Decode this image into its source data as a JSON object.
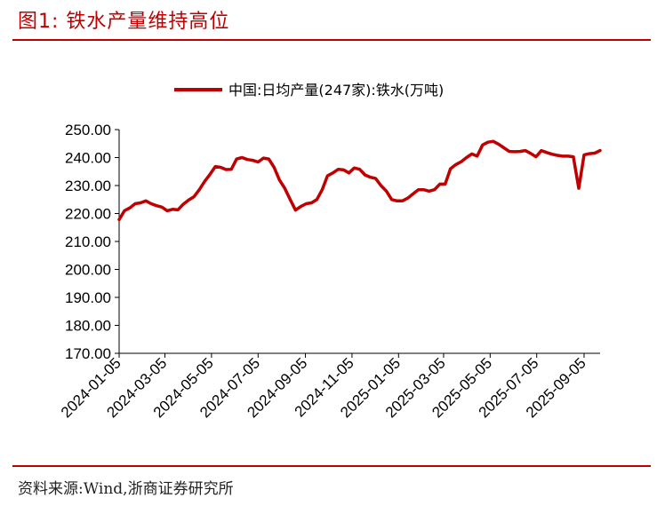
{
  "figure_title": "图1:   铁水产量维持高位",
  "source": "资料来源:Wind,浙商证券研究所",
  "colors": {
    "accent": "#c00000",
    "axis": "#000000",
    "text": "#000000"
  },
  "chart_data": {
    "type": "line",
    "title": "",
    "xlabel": "",
    "ylabel": "",
    "ylim": [
      170,
      250
    ],
    "yticks": [
      "170.00",
      "180.00",
      "190.00",
      "200.00",
      "210.00",
      "220.00",
      "230.00",
      "240.00",
      "250.00"
    ],
    "xticks": [
      "2024-01-05",
      "2024-03-05",
      "2024-05-05",
      "2024-07-05",
      "2024-09-05",
      "2024-11-05",
      "2025-01-05",
      "2025-03-05",
      "2025-05-05",
      "2025-07-05",
      "2025-09-05"
    ],
    "grid": false,
    "legend_position": "top-center",
    "series": [
      {
        "name": "中国:日均产量(247家):铁水(万吨)",
        "color": "#c00000",
        "x": [
          "2024-01-05",
          "2024-01-12",
          "2024-01-19",
          "2024-01-26",
          "2024-02-02",
          "2024-02-09",
          "2024-02-16",
          "2024-02-23",
          "2024-03-01",
          "2024-03-08",
          "2024-03-15",
          "2024-03-22",
          "2024-03-29",
          "2024-04-05",
          "2024-04-12",
          "2024-04-19",
          "2024-04-26",
          "2024-05-03",
          "2024-05-10",
          "2024-05-17",
          "2024-05-24",
          "2024-05-31",
          "2024-06-07",
          "2024-06-14",
          "2024-06-21",
          "2024-06-28",
          "2024-07-05",
          "2024-07-12",
          "2024-07-19",
          "2024-07-26",
          "2024-08-02",
          "2024-08-09",
          "2024-08-16",
          "2024-08-23",
          "2024-08-30",
          "2024-09-06",
          "2024-09-13",
          "2024-09-20",
          "2024-09-27",
          "2024-10-04",
          "2024-10-11",
          "2024-10-18",
          "2024-10-25",
          "2024-11-01",
          "2024-11-08",
          "2024-11-15",
          "2024-11-22",
          "2024-11-29",
          "2024-12-06",
          "2024-12-13",
          "2024-12-20",
          "2024-12-27",
          "2025-01-03",
          "2025-01-10",
          "2025-01-17",
          "2025-01-24",
          "2025-01-31",
          "2025-02-07",
          "2025-02-14",
          "2025-02-21",
          "2025-02-28",
          "2025-03-07",
          "2025-03-14",
          "2025-03-21",
          "2025-03-28",
          "2025-04-04",
          "2025-04-11",
          "2025-04-18",
          "2025-04-25",
          "2025-05-02",
          "2025-05-09",
          "2025-05-16",
          "2025-05-23",
          "2025-05-30",
          "2025-06-06",
          "2025-06-13",
          "2025-06-20",
          "2025-06-27",
          "2025-07-04",
          "2025-07-11",
          "2025-07-18",
          "2025-07-25",
          "2025-08-01",
          "2025-08-08",
          "2025-08-15",
          "2025-08-22",
          "2025-08-29",
          "2025-09-05",
          "2025-09-12",
          "2025-09-19",
          "2025-09-26"
        ],
        "y": [
          217.8,
          221.0,
          222.0,
          223.5,
          223.8,
          224.5,
          223.5,
          222.8,
          222.3,
          221.0,
          221.5,
          221.3,
          223.3,
          224.8,
          226.0,
          228.5,
          231.5,
          234.0,
          236.8,
          236.5,
          235.7,
          235.8,
          239.5,
          240.0,
          239.3,
          239.0,
          238.4,
          239.8,
          239.5,
          236.5,
          232.0,
          229.0,
          225.0,
          221.2,
          222.5,
          223.5,
          223.8,
          225.0,
          228.5,
          233.5,
          234.5,
          235.8,
          235.6,
          234.5,
          236.3,
          235.8,
          233.8,
          233.0,
          232.5,
          230.0,
          228.0,
          225.0,
          224.5,
          224.5,
          225.5,
          227.0,
          228.5,
          228.5,
          228.0,
          228.5,
          230.5,
          230.5,
          236.0,
          237.5,
          238.5,
          240.0,
          241.3,
          240.5,
          244.5,
          245.5,
          245.8,
          244.8,
          243.5,
          242.2,
          242.1,
          242.2,
          242.5,
          241.5,
          240.3,
          242.5,
          241.8,
          241.2,
          240.8,
          240.5,
          240.5,
          240.3,
          229.0,
          241.0,
          241.4,
          241.6,
          242.5
        ]
      }
    ]
  }
}
